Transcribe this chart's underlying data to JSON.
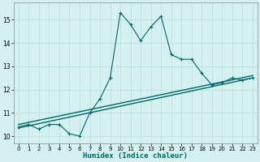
{
  "xlabel": "Humidex (Indice chaleur)",
  "background_color": "#d4f0f0",
  "grid_color": "#b8dede",
  "line_color": "#006666",
  "xlim": [
    -0.5,
    23.5
  ],
  "ylim": [
    9.7,
    15.75
  ],
  "yticks": [
    10,
    11,
    12,
    13,
    14,
    15
  ],
  "xticks": [
    0,
    1,
    2,
    3,
    4,
    5,
    6,
    7,
    8,
    9,
    10,
    11,
    12,
    13,
    14,
    15,
    16,
    17,
    18,
    19,
    20,
    21,
    22,
    23
  ],
  "line1_x": [
    0,
    1,
    2,
    3,
    4,
    5,
    6,
    7,
    8,
    9,
    10,
    11,
    12,
    13,
    14,
    15,
    16,
    17,
    18,
    19,
    20,
    21,
    22,
    23
  ],
  "line1_y": [
    10.4,
    10.5,
    10.3,
    10.5,
    10.5,
    10.1,
    10.0,
    11.0,
    11.6,
    12.5,
    15.3,
    14.8,
    14.1,
    14.7,
    15.15,
    13.5,
    13.3,
    13.3,
    12.7,
    12.2,
    12.3,
    12.5,
    12.4,
    12.5
  ],
  "trend1_x": [
    0,
    23
  ],
  "trend1_y": [
    10.35,
    12.5
  ],
  "trend2_x": [
    0,
    23
  ],
  "trend2_y": [
    10.5,
    12.6
  ]
}
